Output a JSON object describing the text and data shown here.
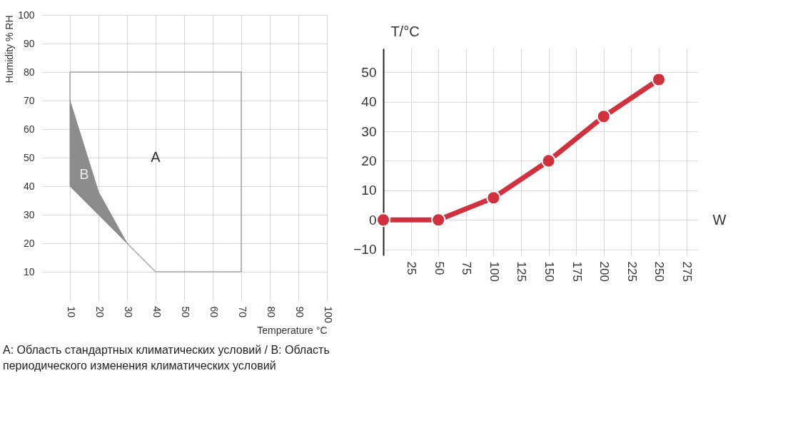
{
  "chart_data": [
    {
      "type": "line",
      "xlabel": "Temperature °C",
      "ylabel": "Humidity % RH",
      "xlim": [
        0,
        100
      ],
      "ylim": [
        0,
        100
      ],
      "xticks": [
        10,
        20,
        30,
        40,
        50,
        60,
        70,
        80,
        90,
        100
      ],
      "yticks": [
        10,
        20,
        30,
        40,
        50,
        60,
        70,
        80,
        90,
        100
      ],
      "grid": true,
      "marker": "none",
      "series": [
        {
          "color": "#a6a6a6",
          "x": [
            10,
            10,
            70,
            70,
            40,
            30
          ],
          "values": [
            70,
            80,
            80,
            10,
            10,
            20
          ]
        },
        {
          "type": "area",
          "color": "#8c8c8c",
          "x": [
            10,
            20,
            30,
            10,
            10
          ],
          "values": [
            70,
            38,
            20,
            40,
            70
          ]
        }
      ],
      "annotations": [
        "A",
        "B",
        "A: Область стандартных климатических условий / B: Область периодического изменения климатических условий"
      ]
    },
    {
      "type": "line",
      "xlabel": "W",
      "ylabel": "T/°C",
      "xlim": [
        0,
        285
      ],
      "ylim": [
        -12,
        58
      ],
      "xticks": [
        25,
        50,
        75,
        100,
        125,
        150,
        175,
        200,
        225,
        250,
        275
      ],
      "yticks": [
        -10,
        0,
        10,
        20,
        30,
        40,
        50
      ],
      "grid": true,
      "marker": "circle",
      "series": [
        {
          "color": "#d0313d",
          "x": [
            0,
            50,
            100,
            150,
            200,
            250
          ],
          "values": [
            0,
            0,
            7.5,
            20,
            35,
            47.5
          ]
        }
      ]
    }
  ]
}
